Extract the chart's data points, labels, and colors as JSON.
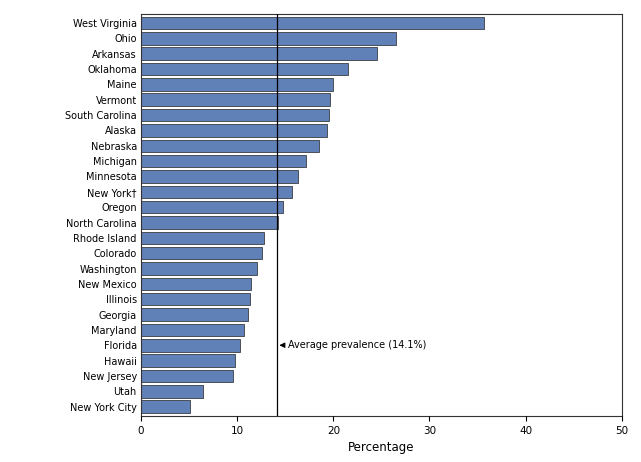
{
  "states": [
    "West Virginia",
    "Ohio",
    "Arkansas",
    "Oklahoma",
    "Maine",
    "Vermont",
    "South Carolina",
    "Alaska",
    "Nebraska",
    "Michigan",
    "Minnesota",
    "New York†",
    "Oregon",
    "North Carolina",
    "Rhode Island",
    "Colorado",
    "Washington",
    "New Mexico",
    "Illinois",
    "Georgia",
    "Maryland",
    "Florida",
    "Hawaii",
    "New Jersey",
    "Utah",
    "New York City"
  ],
  "values": [
    35.7,
    26.5,
    24.5,
    21.5,
    20.0,
    19.7,
    19.5,
    19.3,
    18.5,
    17.2,
    16.3,
    15.7,
    14.8,
    14.2,
    12.8,
    12.6,
    12.1,
    11.4,
    11.3,
    11.1,
    10.7,
    10.3,
    9.8,
    9.6,
    6.4,
    5.1
  ],
  "bar_color": "#6080b8",
  "bar_edgecolor": "#222222",
  "average_line": 14.1,
  "average_label": "Average prevalence (14.1%)",
  "xlabel": "Percentage",
  "xlim": [
    0,
    50
  ],
  "xticks": [
    0,
    10,
    20,
    30,
    40,
    50
  ],
  "background_color": "#ffffff",
  "bar_linewidth": 0.5,
  "label_fontsize": 7.0,
  "xlabel_fontsize": 8.5,
  "xtick_fontsize": 7.5
}
